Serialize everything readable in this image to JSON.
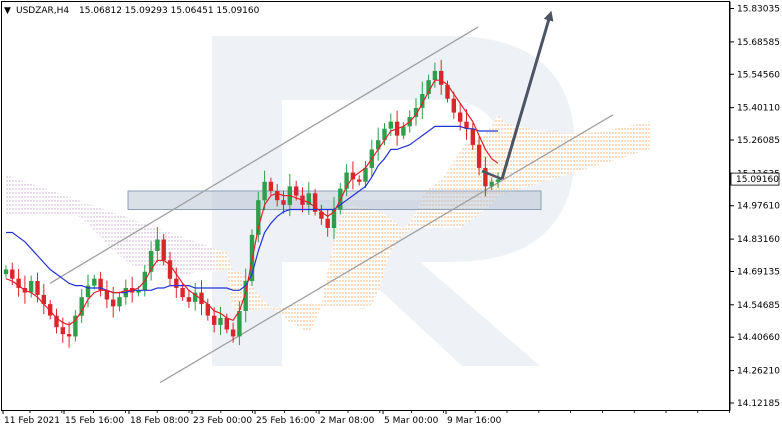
{
  "header": {
    "symbol_label": "USDZAR,H4",
    "ohlc_label": "15.06812 15.09293 15.06451 15.09160",
    "menu_glyph": "▼"
  },
  "chart_data": {
    "type": "candlestick",
    "symbol": "USDZAR",
    "timeframe": "H4",
    "quote": {
      "open": 15.06812,
      "high": 15.09293,
      "low": 15.06451,
      "close": 15.0916
    },
    "current_price_label": "15.09160",
    "current_price": 15.0916,
    "ylim": [
      14.1,
      15.85
    ],
    "price_ticks": [
      "15.83035",
      "15.68585",
      "15.54560",
      "15.40110",
      "15.26085",
      "15.11635",
      "14.97610",
      "14.83160",
      "14.69135",
      "14.54685",
      "14.40660",
      "14.26210",
      "14.12185"
    ],
    "time_ticks": [
      "11 Feb 2021",
      "15 Feb 16:00",
      "18 Feb 08:00",
      "23 Feb 00:00",
      "25 Feb 16:00",
      "2 Mar 08:00",
      "5 Mar 00:00",
      "9 Mar 16:00"
    ],
    "close_path": [
      14.7,
      14.66,
      14.62,
      14.6,
      14.65,
      14.59,
      14.55,
      14.5,
      14.45,
      14.42,
      14.41,
      14.5,
      14.58,
      14.63,
      14.66,
      14.61,
      14.57,
      14.54,
      14.58,
      14.62,
      14.6,
      14.61,
      14.69,
      14.78,
      14.83,
      14.74,
      14.66,
      14.62,
      14.58,
      14.56,
      14.6,
      14.55,
      14.5,
      14.46,
      14.49,
      14.44,
      14.41,
      14.52,
      14.65,
      14.85,
      15.0,
      15.08,
      15.04,
      15.0,
      14.98,
      15.06,
      15.02,
      14.98,
      15.03,
      14.95,
      14.92,
      14.88,
      14.96,
      15.05,
      15.12,
      15.09,
      15.08,
      15.14,
      15.22,
      15.26,
      15.31,
      15.34,
      15.28,
      15.32,
      15.36,
      15.4,
      15.46,
      15.52,
      15.56,
      15.5,
      15.44,
      15.38,
      15.34,
      15.31,
      15.24,
      15.14,
      15.06,
      15.08,
      15.09
    ],
    "red_line": [
      14.66,
      14.65,
      14.63,
      14.61,
      14.6,
      14.58,
      14.55,
      14.52,
      14.49,
      14.47,
      14.46,
      14.48,
      14.52,
      14.57,
      14.6,
      14.61,
      14.61,
      14.6,
      14.6,
      14.61,
      14.61,
      14.62,
      14.65,
      14.7,
      14.74,
      14.74,
      14.72,
      14.68,
      14.64,
      14.61,
      14.59,
      14.57,
      14.55,
      14.52,
      14.51,
      14.49,
      14.48,
      14.52,
      14.6,
      14.74,
      14.88,
      14.98,
      15.02,
      15.03,
      15.02,
      15.02,
      15.01,
      15.0,
      14.99,
      14.97,
      14.95,
      14.93,
      14.95,
      15.0,
      15.06,
      15.1,
      15.12,
      15.14,
      15.18,
      15.22,
      15.26,
      15.3,
      15.31,
      15.32,
      15.34,
      15.37,
      15.42,
      15.47,
      15.52,
      15.52,
      15.5,
      15.46,
      15.42,
      15.38,
      15.34,
      15.28,
      15.22,
      15.18,
      15.16
    ],
    "blue_line": [
      14.86,
      14.86,
      14.84,
      14.82,
      14.79,
      14.76,
      14.73,
      14.7,
      14.68,
      14.66,
      14.64,
      14.63,
      14.63,
      14.62,
      14.62,
      14.62,
      14.61,
      14.6,
      14.6,
      14.6,
      14.61,
      14.61,
      14.61,
      14.61,
      14.62,
      14.62,
      14.63,
      14.63,
      14.63,
      14.63,
      14.62,
      14.62,
      14.62,
      14.62,
      14.62,
      14.62,
      14.61,
      14.61,
      14.63,
      14.68,
      14.78,
      14.86,
      14.9,
      14.93,
      14.95,
      14.96,
      14.96,
      14.96,
      14.96,
      14.96,
      14.96,
      14.96,
      14.96,
      14.98,
      15.0,
      15.02,
      15.04,
      15.06,
      15.1,
      15.15,
      15.18,
      15.22,
      15.22,
      15.23,
      15.24,
      15.26,
      15.28,
      15.3,
      15.32,
      15.32,
      15.32,
      15.32,
      15.32,
      15.31,
      15.31,
      15.3,
      15.3,
      15.3,
      15.3
    ],
    "forecast_price": 15.8,
    "support_zone": [
      14.96,
      15.04
    ]
  }
}
